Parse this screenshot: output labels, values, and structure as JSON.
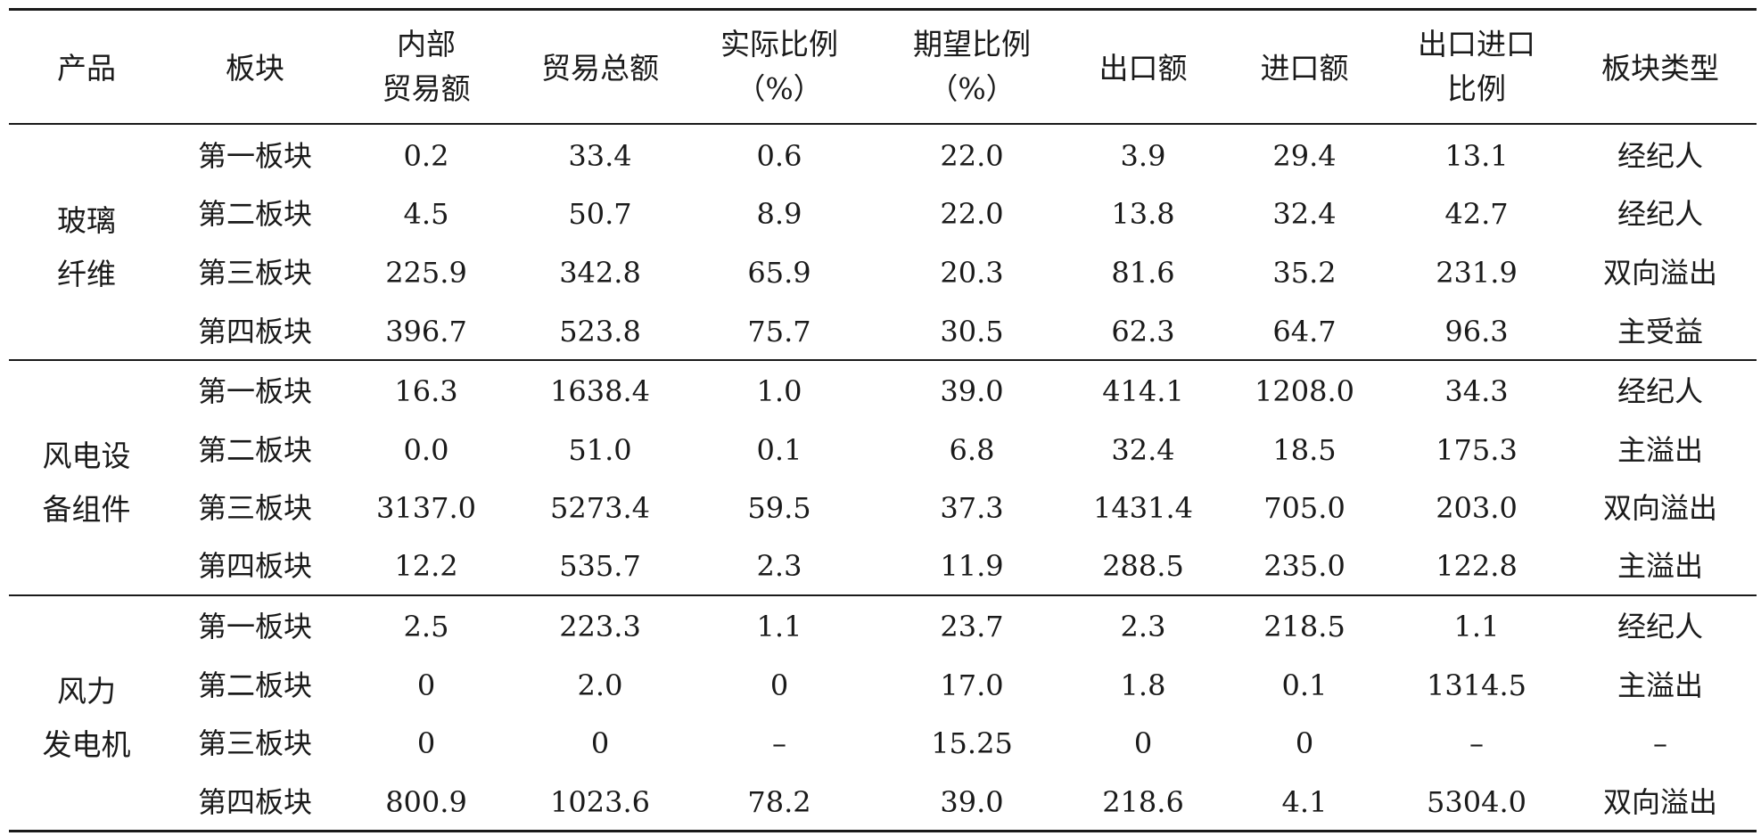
{
  "header": {
    "product": "产品",
    "sector": "板块",
    "internal": [
      "内部",
      "贸易额"
    ],
    "total": "贸易总额",
    "actual": [
      "实际比例",
      "（%）"
    ],
    "expected": [
      "期望比例",
      "（%）"
    ],
    "export": "出口额",
    "import": "进口额",
    "ratio": [
      "出口进口",
      "比例"
    ],
    "type": "板块类型"
  },
  "groups": [
    {
      "product": [
        "玻璃",
        "纤维"
      ],
      "rows": [
        [
          "第一板块",
          "0.2",
          "33.4",
          "0.6",
          "22.0",
          "3.9",
          "29.4",
          "13.1",
          "经纪人"
        ],
        [
          "第二板块",
          "4.5",
          "50.7",
          "8.9",
          "22.0",
          "13.8",
          "32.4",
          "42.7",
          "经纪人"
        ],
        [
          "第三板块",
          "225.9",
          "342.8",
          "65.9",
          "20.3",
          "81.6",
          "35.2",
          "231.9",
          "双向溢出"
        ],
        [
          "第四板块",
          "396.7",
          "523.8",
          "75.7",
          "30.5",
          "62.3",
          "64.7",
          "96.3",
          "主受益"
        ]
      ]
    },
    {
      "product": [
        "风电设",
        "备组件"
      ],
      "rows": [
        [
          "第一板块",
          "16.3",
          "1638.4",
          "1.0",
          "39.0",
          "414.1",
          "1208.0",
          "34.3",
          "经纪人"
        ],
        [
          "第二板块",
          "0.0",
          "51.0",
          "0.1",
          "6.8",
          "32.4",
          "18.5",
          "175.3",
          "主溢出"
        ],
        [
          "第三板块",
          "3137.0",
          "5273.4",
          "59.5",
          "37.3",
          "1431.4",
          "705.0",
          "203.0",
          "双向溢出"
        ],
        [
          "第四板块",
          "12.2",
          "535.7",
          "2.3",
          "11.9",
          "288.5",
          "235.0",
          "122.8",
          "主溢出"
        ]
      ]
    },
    {
      "product": [
        "风力",
        "发电机"
      ],
      "rows": [
        [
          "第一板块",
          "2.5",
          "223.3",
          "1.1",
          "23.7",
          "2.3",
          "218.5",
          "1.1",
          "经纪人"
        ],
        [
          "第二板块",
          "0",
          "2.0",
          "0",
          "17.0",
          "1.8",
          "0.1",
          "1314.5",
          "主溢出"
        ],
        [
          "第三板块",
          "0",
          "0",
          "–",
          "15.25",
          "0",
          "0",
          "–",
          "–"
        ],
        [
          "第四板块",
          "800.9",
          "1023.6",
          "78.2",
          "39.0",
          "218.6",
          "4.1",
          "5304.0",
          "双向溢出"
        ]
      ]
    }
  ]
}
